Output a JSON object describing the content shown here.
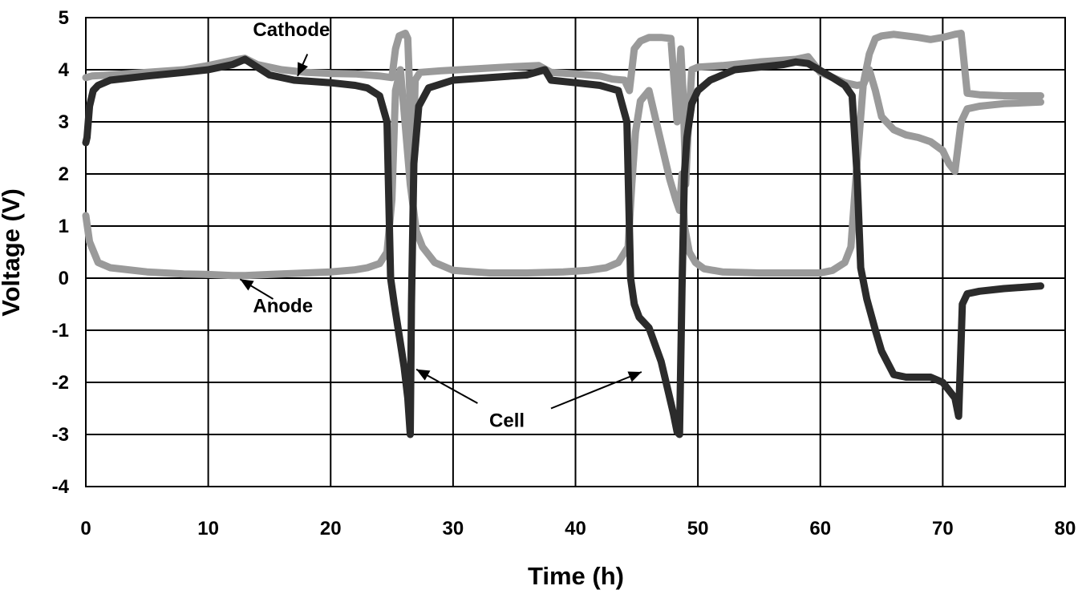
{
  "chart_data": {
    "type": "line",
    "title": "",
    "xlabel": "Time (h)",
    "ylabel": "Voltage (V)",
    "xlim": [
      0,
      80
    ],
    "ylim": [
      -4,
      5
    ],
    "xticks": [
      0,
      10,
      20,
      30,
      40,
      50,
      60,
      70,
      80
    ],
    "yticks": [
      -4,
      -3,
      -2,
      -1,
      0,
      1,
      2,
      3,
      4,
      5
    ],
    "grid": true,
    "legend": "none",
    "annotations": [
      {
        "id": "cathode",
        "text": "Cathode",
        "text_at": [
          16.8,
          4.65
        ],
        "arrow_from": [
          18.1,
          4.3
        ],
        "arrow_to": [
          17.3,
          3.88
        ]
      },
      {
        "id": "anode",
        "text": "Anode",
        "text_at": [
          16.1,
          -0.65
        ],
        "arrow_from": [
          15.3,
          -0.4
        ],
        "arrow_to": [
          12.6,
          -0.02
        ]
      },
      {
        "id": "cell-left",
        "text": "",
        "arrow_from": [
          32.0,
          -2.4
        ],
        "arrow_to": [
          27.0,
          -1.75
        ]
      },
      {
        "id": "cell-right",
        "text": "",
        "arrow_from": [
          38.0,
          -2.5
        ],
        "arrow_to": [
          45.4,
          -1.8
        ]
      },
      {
        "id": "cell",
        "text": "Cell",
        "text_at": [
          34.4,
          -2.85
        ]
      }
    ],
    "series": [
      {
        "id": "cathode",
        "color": "#9a9a9a",
        "x": [
          0,
          0.5,
          2,
          5,
          8,
          10,
          12,
          13,
          14,
          16,
          18,
          20,
          22,
          24,
          25,
          25.3,
          25.6,
          26.1,
          26.3,
          26.5,
          26.7,
          26.9,
          27.3,
          29,
          32,
          35,
          37,
          38,
          40,
          42,
          43,
          44,
          44.4,
          44.8,
          45.3,
          46,
          47,
          47.8,
          48.3,
          48.6,
          48.8,
          49.0,
          49.2,
          49.5,
          50,
          52,
          55,
          58,
          59,
          60,
          62,
          63,
          63.5,
          64,
          64.5,
          65,
          66,
          68,
          69,
          70,
          71,
          71.5,
          72,
          73,
          75,
          78
        ],
        "y": [
          3.85,
          3.88,
          3.9,
          3.95,
          4.0,
          4.08,
          4.18,
          4.22,
          4.1,
          4.0,
          3.95,
          3.93,
          3.92,
          3.88,
          3.85,
          4.4,
          4.65,
          4.7,
          4.6,
          3.3,
          1.7,
          3.8,
          3.95,
          3.98,
          4.02,
          4.06,
          4.08,
          3.95,
          3.92,
          3.88,
          3.82,
          3.8,
          3.6,
          4.4,
          4.55,
          4.62,
          4.62,
          4.6,
          3.0,
          4.4,
          3.5,
          1.8,
          2.8,
          4.0,
          4.05,
          4.08,
          4.15,
          4.2,
          4.25,
          3.95,
          3.75,
          3.7,
          3.72,
          4.3,
          4.6,
          4.65,
          4.68,
          4.62,
          4.58,
          4.62,
          4.68,
          4.7,
          3.55,
          3.52,
          3.5,
          3.5
        ]
      },
      {
        "id": "anode",
        "color": "#9a9a9a",
        "x": [
          0,
          0.3,
          1,
          2,
          5,
          8,
          10,
          12,
          13,
          15,
          18,
          20,
          22,
          23,
          24,
          24.6,
          25,
          25.3,
          25.7,
          26.0,
          26.5,
          27.0,
          27.5,
          28.5,
          30,
          33,
          36,
          39,
          41,
          42.5,
          43.5,
          44.3,
          44.6,
          44.9,
          45.3,
          46,
          47,
          47.7,
          48.2,
          48.5,
          48.7,
          48.9,
          49.3,
          49.8,
          50.5,
          52,
          55,
          58,
          60,
          61,
          62,
          62.5,
          63,
          63.5,
          64,
          64.5,
          65,
          66,
          67,
          68,
          69,
          70,
          70.5,
          71,
          71.5,
          72,
          73,
          75,
          78
        ],
        "y": [
          1.2,
          0.7,
          0.3,
          0.2,
          0.12,
          0.08,
          0.07,
          0.05,
          0.05,
          0.07,
          0.1,
          0.12,
          0.16,
          0.2,
          0.28,
          0.5,
          1.5,
          3.6,
          4.0,
          3.2,
          1.8,
          0.9,
          0.6,
          0.3,
          0.15,
          0.1,
          0.1,
          0.12,
          0.15,
          0.2,
          0.3,
          0.6,
          1.8,
          2.8,
          3.4,
          3.6,
          2.6,
          1.9,
          1.5,
          1.3,
          2.0,
          1.0,
          0.5,
          0.3,
          0.18,
          0.12,
          0.1,
          0.1,
          0.1,
          0.15,
          0.3,
          0.6,
          2.2,
          3.7,
          4.0,
          3.6,
          3.1,
          2.85,
          2.75,
          2.7,
          2.62,
          2.45,
          2.2,
          2.05,
          3.0,
          3.25,
          3.3,
          3.35,
          3.38
        ]
      },
      {
        "id": "cell",
        "color": "#2b2b2b",
        "x": [
          0,
          0.1,
          0.3,
          0.6,
          1,
          2,
          5,
          8,
          10,
          12,
          13,
          15,
          17,
          20,
          22,
          23,
          24,
          24.6,
          24.9,
          25.2,
          25.6,
          26.0,
          26.3,
          26.5,
          26.6,
          26.8,
          27.2,
          28,
          30,
          33,
          36,
          37.5,
          38,
          40,
          42,
          43.5,
          44.2,
          44.5,
          44.8,
          45.2,
          46,
          47,
          47.6,
          48.0,
          48.3,
          48.5,
          48.7,
          48.9,
          49.1,
          49.5,
          50,
          51,
          53,
          55,
          57,
          58,
          59,
          61,
          62,
          62.6,
          63.0,
          63.3,
          63.8,
          64.5,
          65,
          66,
          67,
          69,
          70,
          71,
          71.3,
          71.6,
          72,
          73,
          75,
          78
        ],
        "y": [
          2.6,
          2.7,
          3.3,
          3.6,
          3.7,
          3.8,
          3.88,
          3.95,
          4.0,
          4.1,
          4.2,
          3.9,
          3.8,
          3.75,
          3.7,
          3.65,
          3.5,
          3.0,
          0.0,
          -0.5,
          -1.1,
          -1.7,
          -2.3,
          -3.0,
          -0.5,
          2.2,
          3.3,
          3.65,
          3.8,
          3.85,
          3.9,
          4.0,
          3.8,
          3.75,
          3.7,
          3.6,
          3.0,
          0.0,
          -0.5,
          -0.75,
          -0.95,
          -1.6,
          -2.2,
          -2.6,
          -2.95,
          -3.0,
          -0.2,
          2.0,
          2.7,
          3.35,
          3.6,
          3.8,
          4.0,
          4.05,
          4.1,
          4.15,
          4.12,
          3.85,
          3.7,
          3.5,
          2.0,
          0.2,
          -0.4,
          -1.0,
          -1.4,
          -1.85,
          -1.9,
          -1.9,
          -2.0,
          -2.3,
          -2.65,
          -0.5,
          -0.3,
          -0.25,
          -0.2,
          -0.15
        ]
      }
    ]
  }
}
